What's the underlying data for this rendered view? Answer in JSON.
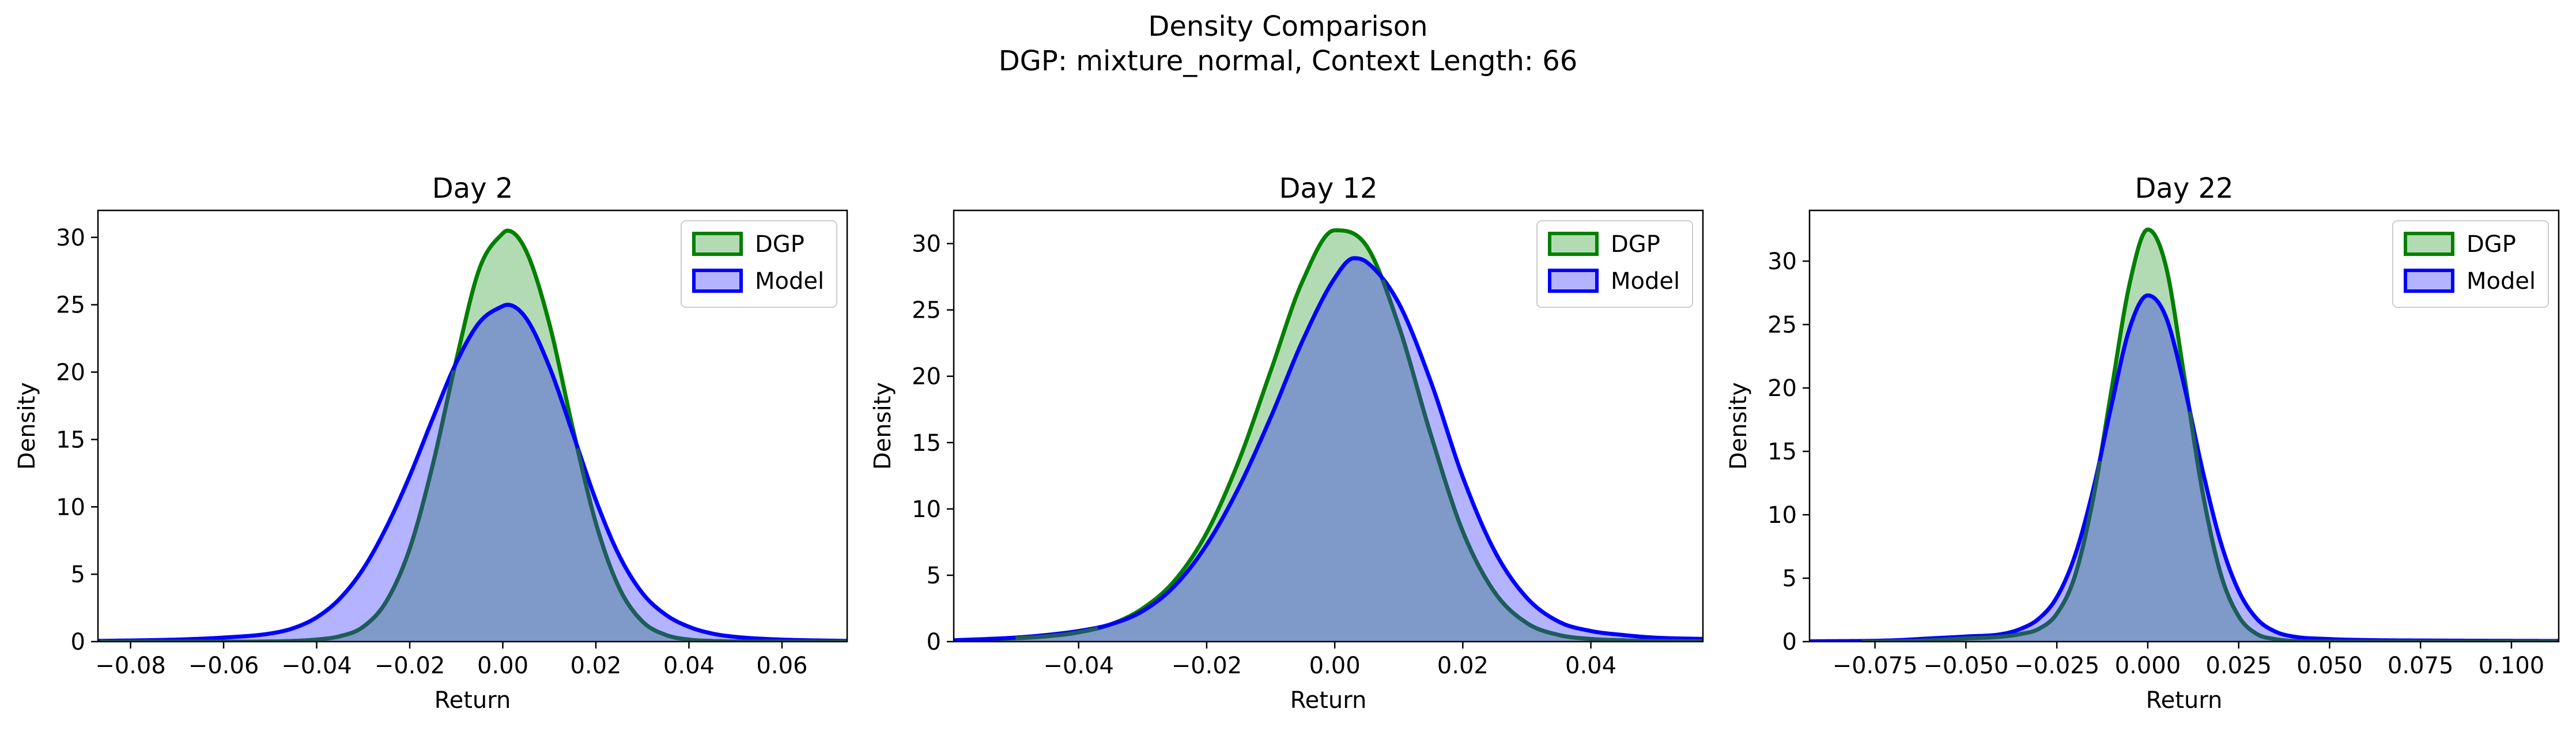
{
  "figure": {
    "title_line1": "Density Comparison",
    "title_line2": "DGP: mixture_normal, Context Length: 66"
  },
  "colors": {
    "dgp_line": "#008000",
    "dgp_fill": "#b3dbb3",
    "model_line": "#0000ff",
    "model_fill": "#b3b3ff",
    "overlap_fill": "#7f99c9"
  },
  "chart_data": [
    {
      "type": "area",
      "title": "Day 2",
      "xlabel": "Return",
      "ylabel": "Density",
      "xlim": [
        -0.087,
        0.074
      ],
      "ylim": [
        0,
        32
      ],
      "xticks": [
        -0.08,
        -0.06,
        -0.04,
        -0.02,
        0.0,
        0.02,
        0.04,
        0.06
      ],
      "xtick_labels": [
        "−0.08",
        "−0.06",
        "−0.04",
        "−0.02",
        "0.00",
        "0.02",
        "0.04",
        "0.06"
      ],
      "yticks": [
        0,
        5,
        10,
        15,
        20,
        25,
        30
      ],
      "ytick_labels": [
        "0",
        "5",
        "10",
        "15",
        "20",
        "25",
        "30"
      ],
      "legend": "top-right",
      "series": [
        {
          "name": "DGP",
          "x": [
            -0.087,
            -0.06,
            -0.045,
            -0.04,
            -0.035,
            -0.03,
            -0.025,
            -0.02,
            -0.015,
            -0.01,
            -0.005,
            0.0,
            0.001,
            0.005,
            0.01,
            0.015,
            0.02,
            0.025,
            0.03,
            0.035,
            0.04,
            0.045,
            0.06,
            0.074
          ],
          "y": [
            0,
            0,
            0.05,
            0.15,
            0.4,
            1.1,
            3.0,
            6.9,
            13.2,
            20.9,
            27.7,
            30.3,
            30.5,
            29.0,
            23.6,
            15.9,
            8.8,
            4.0,
            1.5,
            0.5,
            0.15,
            0.05,
            0,
            0
          ]
        },
        {
          "name": "Model",
          "x": [
            -0.087,
            -0.07,
            -0.06,
            -0.05,
            -0.045,
            -0.04,
            -0.035,
            -0.03,
            -0.025,
            -0.02,
            -0.015,
            -0.01,
            -0.005,
            0.0,
            0.001,
            0.005,
            0.01,
            0.015,
            0.02,
            0.025,
            0.03,
            0.035,
            0.04,
            0.045,
            0.05,
            0.06,
            0.074
          ],
          "y": [
            0.05,
            0.15,
            0.3,
            0.6,
            1.0,
            1.8,
            3.2,
            5.4,
            8.5,
            12.3,
            16.6,
            20.7,
            23.7,
            24.9,
            25.0,
            24.0,
            20.4,
            15.5,
            10.5,
            6.4,
            3.6,
            2.0,
            1.1,
            0.6,
            0.35,
            0.15,
            0.05
          ]
        }
      ]
    },
    {
      "type": "area",
      "title": "Day 12",
      "xlabel": "Return",
      "ylabel": "Density",
      "xlim": [
        -0.0595,
        0.0575
      ],
      "ylim": [
        0,
        32.5
      ],
      "xticks": [
        -0.04,
        -0.02,
        0.0,
        0.02,
        0.04
      ],
      "xtick_labels": [
        "−0.04",
        "−0.02",
        "0.00",
        "0.02",
        "0.04"
      ],
      "yticks": [
        0,
        5,
        10,
        15,
        20,
        25,
        30
      ],
      "ytick_labels": [
        "0",
        "5",
        "10",
        "15",
        "20",
        "25",
        "30"
      ],
      "legend": "top-right",
      "series": [
        {
          "name": "DGP",
          "x": [
            -0.0595,
            -0.05,
            -0.045,
            -0.04,
            -0.035,
            -0.03,
            -0.025,
            -0.02,
            -0.015,
            -0.01,
            -0.005,
            0.0,
            0.005,
            0.01,
            0.015,
            0.02,
            0.025,
            0.03,
            0.035,
            0.04,
            0.045,
            0.05,
            0.0575
          ],
          "y": [
            0.05,
            0.25,
            0.4,
            0.7,
            1.3,
            2.5,
            4.6,
            8.2,
            13.6,
            20.4,
            27.2,
            31.0,
            29.8,
            23.8,
            15.6,
            8.3,
            3.7,
            1.4,
            0.5,
            0.2,
            0.1,
            0.05,
            0.02
          ]
        },
        {
          "name": "Model",
          "x": [
            -0.0595,
            -0.05,
            -0.045,
            -0.04,
            -0.035,
            -0.03,
            -0.025,
            -0.02,
            -0.015,
            -0.01,
            -0.005,
            0.0,
            0.003,
            0.005,
            0.01,
            0.015,
            0.02,
            0.025,
            0.03,
            0.035,
            0.04,
            0.045,
            0.05,
            0.0575
          ],
          "y": [
            0.1,
            0.3,
            0.5,
            0.8,
            1.3,
            2.3,
            4.2,
            7.3,
            11.6,
            16.9,
            22.7,
            27.4,
            28.9,
            28.6,
            25.5,
            19.6,
            12.4,
            6.8,
            3.3,
            1.5,
            0.8,
            0.5,
            0.3,
            0.2
          ]
        }
      ]
    },
    {
      "type": "area",
      "title": "Day 22",
      "xlabel": "Return",
      "ylabel": "Density",
      "xlim": [
        -0.093,
        0.113
      ],
      "ylim": [
        0,
        34
      ],
      "xticks": [
        -0.075,
        -0.05,
        -0.025,
        0.0,
        0.025,
        0.05,
        0.075,
        0.1
      ],
      "xtick_labels": [
        "−0.075",
        "−0.050",
        "−0.025",
        "0.000",
        "0.025",
        "0.050",
        "0.075",
        "0.100"
      ],
      "yticks": [
        0,
        5,
        10,
        15,
        20,
        25,
        30
      ],
      "ytick_labels": [
        "0",
        "5",
        "10",
        "15",
        "20",
        "25",
        "30"
      ],
      "legend": "top-right",
      "series": [
        {
          "name": "DGP",
          "x": [
            -0.093,
            -0.07,
            -0.06,
            -0.05,
            -0.04,
            -0.035,
            -0.03,
            -0.025,
            -0.02,
            -0.015,
            -0.01,
            -0.005,
            0.0,
            0.005,
            0.01,
            0.015,
            0.02,
            0.025,
            0.03,
            0.035,
            0.04,
            0.05,
            0.07,
            0.113
          ],
          "y": [
            0,
            0.02,
            0.1,
            0.25,
            0.4,
            0.6,
            1.0,
            2.2,
            5.2,
            11.3,
            19.8,
            28.2,
            32.5,
            29.6,
            21.0,
            11.9,
            5.4,
            2.0,
            0.6,
            0.2,
            0.05,
            0,
            0,
            0
          ]
        },
        {
          "name": "Model",
          "x": [
            -0.093,
            -0.07,
            -0.06,
            -0.05,
            -0.04,
            -0.035,
            -0.03,
            -0.025,
            -0.02,
            -0.015,
            -0.01,
            -0.005,
            0.0,
            0.005,
            0.01,
            0.015,
            0.02,
            0.025,
            0.03,
            0.035,
            0.04,
            0.05,
            0.06,
            0.08,
            0.1,
            0.113
          ],
          "y": [
            0.02,
            0.1,
            0.25,
            0.4,
            0.6,
            1.0,
            1.8,
            3.5,
            6.8,
            12.0,
            18.6,
            24.7,
            27.3,
            25.6,
            20.2,
            13.6,
            7.9,
            4.0,
            1.8,
            0.8,
            0.4,
            0.2,
            0.12,
            0.08,
            0.06,
            0.05
          ]
        }
      ]
    }
  ]
}
